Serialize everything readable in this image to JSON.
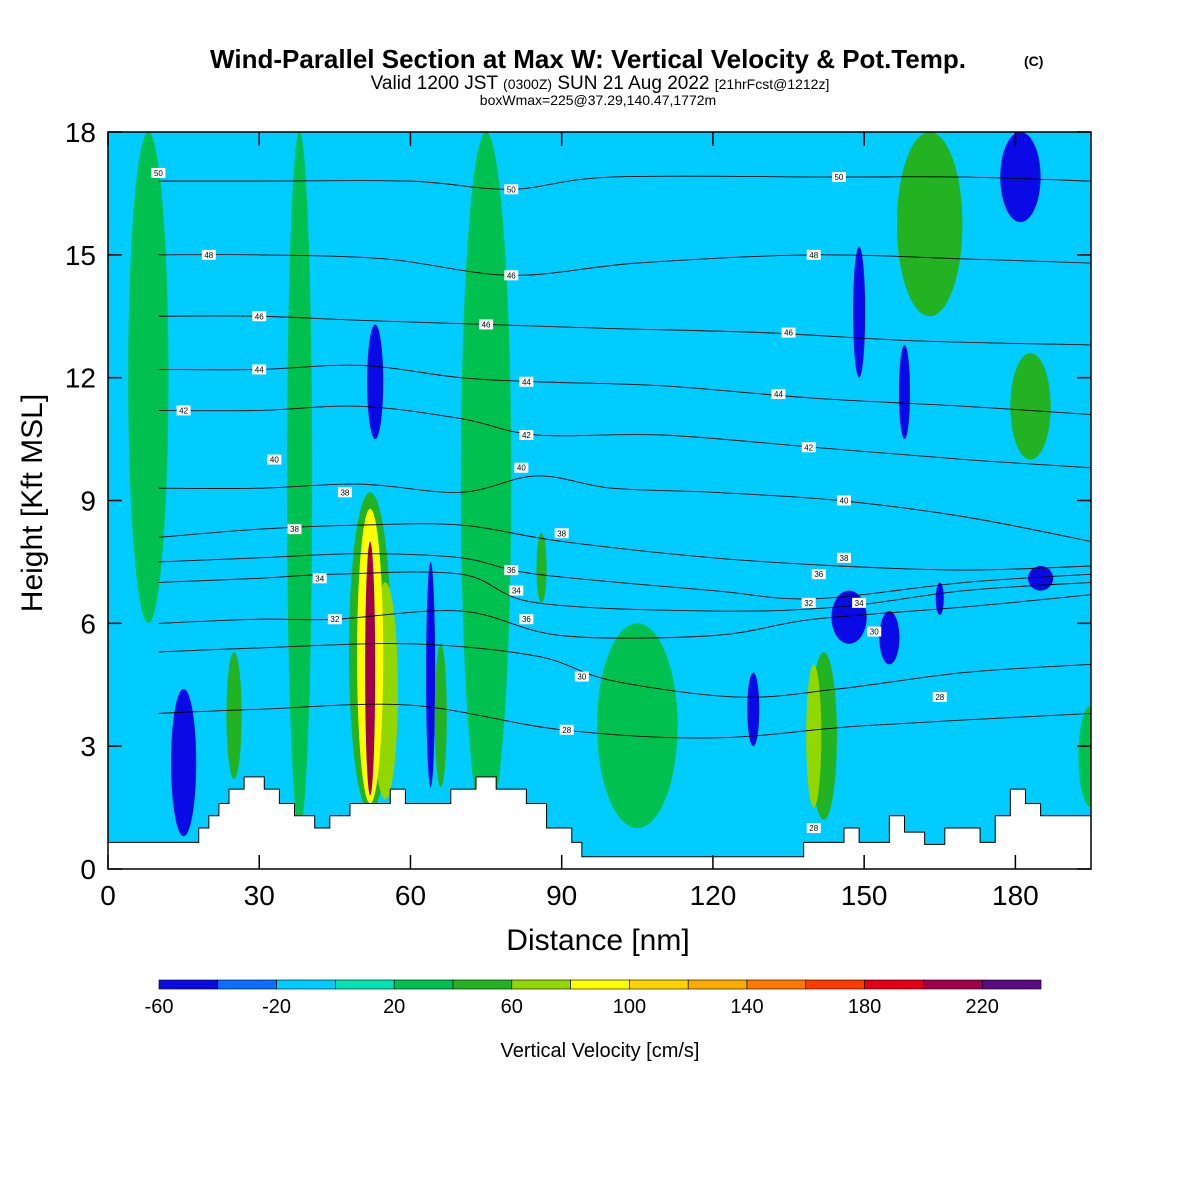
{
  "header": {
    "title": "Wind-Parallel Section at Max W: Vertical Velocity & Pot.Temp.",
    "title_mark": "(C)",
    "valid_prefix": "Valid 1200 JST",
    "valid_utc": "(0300Z)",
    "valid_date": "SUN 21 Aug 2022",
    "forecast": "[21hrFcst@1212z]",
    "box_info": "boxWmax=225@37.29,140.47,1772m"
  },
  "colors": {
    "background": "#00ccff",
    "terrain": "#ffffff",
    "isentrope": "#000000",
    "frame": "#000000"
  },
  "chart_data": {
    "type": "heatmap",
    "title": "Wind-Parallel Section at Max W: Vertical Velocity & Pot.Temp.",
    "xlabel": "Distance [nm]",
    "ylabel": "Height [Kft MSL]",
    "xlim": [
      0,
      195
    ],
    "ylim": [
      0,
      18
    ],
    "x_ticks": [
      0,
      30,
      60,
      90,
      120,
      150,
      180
    ],
    "y_ticks": [
      0,
      3,
      6,
      9,
      12,
      15,
      18
    ],
    "colorbar": {
      "label": "Vertical Velocity [cm/s]",
      "bins": [
        -60,
        -40,
        -20,
        0,
        20,
        40,
        60,
        80,
        100,
        120,
        140,
        160,
        180,
        200,
        220,
        240
      ],
      "tick_values": [
        -60,
        -20,
        20,
        60,
        100,
        140,
        180,
        220
      ],
      "colors": [
        "#0a0ae6",
        "#0a6eff",
        "#00ccff",
        "#00e4b4",
        "#00c050",
        "#22b222",
        "#92d800",
        "#ffff00",
        "#ffd200",
        "#ffaa00",
        "#ff7800",
        "#ff3c00",
        "#e60014",
        "#a0004a",
        "#5a0a82"
      ]
    },
    "velocity_features": [
      {
        "x": 52,
        "z0": 1.8,
        "z1": 8.0,
        "w": 210,
        "halfwidth_nm": 1.0
      },
      {
        "x": 52,
        "z0": 1.6,
        "z1": 8.8,
        "w": 90,
        "halfwidth_nm": 2.6
      },
      {
        "x": 55,
        "z0": 1.7,
        "z1": 7.0,
        "w": 70,
        "halfwidth_nm": 2.5
      },
      {
        "x": 52,
        "z0": 1.4,
        "z1": 9.2,
        "w": 45,
        "halfwidth_nm": 4.2
      },
      {
        "x": 15,
        "z0": 0.8,
        "z1": 4.4,
        "w": -45,
        "halfwidth_nm": 2.5
      },
      {
        "x": 53,
        "z0": 10.5,
        "z1": 13.3,
        "w": -45,
        "halfwidth_nm": 1.6
      },
      {
        "x": 64,
        "z0": 2.0,
        "z1": 7.5,
        "w": -45,
        "halfwidth_nm": 0.9
      },
      {
        "x": 66,
        "z0": 2.0,
        "z1": 5.5,
        "w": 45,
        "halfwidth_nm": 1.2
      },
      {
        "x": 25,
        "z0": 2.2,
        "z1": 5.3,
        "w": 45,
        "halfwidth_nm": 1.5
      },
      {
        "x": 86,
        "z0": 6.5,
        "z1": 8.2,
        "w": 45,
        "halfwidth_nm": 1.0
      },
      {
        "x": 128,
        "z0": 3.0,
        "z1": 4.8,
        "w": -45,
        "halfwidth_nm": 1.2
      },
      {
        "x": 140,
        "z0": 1.5,
        "z1": 5.0,
        "w": 70,
        "halfwidth_nm": 1.5
      },
      {
        "x": 142,
        "z0": 1.2,
        "z1": 5.3,
        "w": 45,
        "halfwidth_nm": 2.6
      },
      {
        "x": 147,
        "z0": 5.5,
        "z1": 6.8,
        "w": -45,
        "halfwidth_nm": 3.5
      },
      {
        "x": 155,
        "z0": 5.0,
        "z1": 6.3,
        "w": -45,
        "halfwidth_nm": 2.0
      },
      {
        "x": 149,
        "z0": 12.0,
        "z1": 15.2,
        "w": -45,
        "halfwidth_nm": 1.2
      },
      {
        "x": 158,
        "z0": 10.5,
        "z1": 12.8,
        "w": -45,
        "halfwidth_nm": 1.1
      },
      {
        "x": 181,
        "z0": 15.8,
        "z1": 18.0,
        "w": -45,
        "halfwidth_nm": 4.0
      },
      {
        "x": 163,
        "z0": 13.5,
        "z1": 18.0,
        "w": 45,
        "halfwidth_nm": 6.5
      },
      {
        "x": 183,
        "z0": 10.0,
        "z1": 12.6,
        "w": 45,
        "halfwidth_nm": 4.0
      },
      {
        "x": 185,
        "z0": 6.8,
        "z1": 7.4,
        "w": -45,
        "halfwidth_nm": 2.5
      },
      {
        "x": 165,
        "z0": 6.2,
        "z1": 7.0,
        "w": -45,
        "halfwidth_nm": 0.8
      },
      {
        "x": 75,
        "z0": 1.0,
        "z1": 18.0,
        "w": 30,
        "halfwidth_nm": 5.0
      },
      {
        "x": 8,
        "z0": 6.0,
        "z1": 18.0,
        "w": 25,
        "halfwidth_nm": 4.0
      },
      {
        "x": 105,
        "z0": 1.0,
        "z1": 6.0,
        "w": 25,
        "halfwidth_nm": 8.0
      },
      {
        "x": 38,
        "z0": 1.0,
        "z1": 18.0,
        "w": 25,
        "halfwidth_nm": 2.5
      },
      {
        "x": 195,
        "z0": 1.5,
        "z1": 4.0,
        "w": 25,
        "halfwidth_nm": 2.5
      }
    ],
    "terrain_kft": [
      [
        0,
        0.65
      ],
      [
        17,
        0.65
      ],
      [
        18,
        1.0
      ],
      [
        20,
        1.3
      ],
      [
        22,
        1.6
      ],
      [
        24,
        1.95
      ],
      [
        27,
        2.25
      ],
      [
        31,
        1.95
      ],
      [
        34,
        1.6
      ],
      [
        37,
        1.3
      ],
      [
        41,
        1.0
      ],
      [
        44,
        1.3
      ],
      [
        48,
        1.6
      ],
      [
        52,
        1.6
      ],
      [
        56,
        1.95
      ],
      [
        59,
        1.6
      ],
      [
        63,
        1.6
      ],
      [
        68,
        1.95
      ],
      [
        73,
        2.25
      ],
      [
        77,
        1.95
      ],
      [
        83,
        1.6
      ],
      [
        87,
        1.0
      ],
      [
        92,
        0.65
      ],
      [
        94,
        0.3
      ],
      [
        128,
        0.3
      ],
      [
        138,
        0.65
      ],
      [
        145,
        0.65
      ],
      [
        146,
        1.0
      ],
      [
        149,
        0.65
      ],
      [
        155,
        1.3
      ],
      [
        158,
        0.9
      ],
      [
        162,
        0.6
      ],
      [
        166,
        1.0
      ],
      [
        173,
        0.65
      ],
      [
        176,
        1.3
      ],
      [
        179,
        1.95
      ],
      [
        182,
        1.6
      ],
      [
        185,
        1.3
      ],
      [
        188,
        1.3
      ],
      [
        195,
        1.3
      ]
    ],
    "isentropes": [
      {
        "level": 328,
        "pts": [
          [
            10,
            3.8
          ],
          [
            30,
            3.9
          ],
          [
            60,
            4.0
          ],
          [
            90,
            3.4
          ],
          [
            120,
            3.2
          ],
          [
            150,
            3.5
          ],
          [
            195,
            3.8
          ]
        ]
      },
      {
        "level": 330,
        "pts": [
          [
            10,
            5.3
          ],
          [
            30,
            5.4
          ],
          [
            60,
            5.5
          ],
          [
            85,
            5.2
          ],
          [
            100,
            4.6
          ],
          [
            125,
            4.2
          ],
          [
            145,
            4.4
          ],
          [
            170,
            4.8
          ],
          [
            195,
            5.0
          ]
        ]
      },
      {
        "level": 332,
        "pts": [
          [
            10,
            6.0
          ],
          [
            30,
            6.1
          ],
          [
            45,
            6.1
          ],
          [
            70,
            6.3
          ],
          [
            90,
            5.7
          ],
          [
            120,
            5.7
          ],
          [
            140,
            6.1
          ],
          [
            170,
            6.4
          ],
          [
            195,
            6.7
          ]
        ]
      },
      {
        "level": 334,
        "pts": [
          [
            10,
            7.0
          ],
          [
            30,
            7.1
          ],
          [
            45,
            7.2
          ],
          [
            70,
            7.2
          ],
          [
            85,
            6.5
          ],
          [
            120,
            6.3
          ],
          [
            145,
            6.4
          ],
          [
            170,
            6.8
          ],
          [
            195,
            7.0
          ]
        ]
      },
      {
        "level": 336,
        "pts": [
          [
            10,
            7.5
          ],
          [
            30,
            7.6
          ],
          [
            50,
            7.7
          ],
          [
            70,
            7.6
          ],
          [
            85,
            7.2
          ],
          [
            120,
            6.8
          ],
          [
            140,
            6.6
          ],
          [
            170,
            7.0
          ],
          [
            195,
            7.2
          ]
        ]
      },
      {
        "level": 338,
        "pts": [
          [
            10,
            8.1
          ],
          [
            30,
            8.3
          ],
          [
            50,
            8.4
          ],
          [
            70,
            8.4
          ],
          [
            90,
            8.0
          ],
          [
            120,
            7.6
          ],
          [
            145,
            7.4
          ],
          [
            170,
            7.3
          ],
          [
            195,
            7.4
          ]
        ]
      },
      {
        "level": 340,
        "pts": [
          [
            10,
            9.3
          ],
          [
            30,
            9.3
          ],
          [
            50,
            9.4
          ],
          [
            70,
            9.2
          ],
          [
            85,
            9.6
          ],
          [
            100,
            9.3
          ],
          [
            120,
            9.2
          ],
          [
            145,
            9.0
          ],
          [
            170,
            8.6
          ],
          [
            195,
            8.0
          ]
        ]
      },
      {
        "level": 342,
        "pts": [
          [
            10,
            11.2
          ],
          [
            30,
            11.2
          ],
          [
            50,
            11.3
          ],
          [
            70,
            11.0
          ],
          [
            85,
            10.6
          ],
          [
            110,
            10.6
          ],
          [
            140,
            10.3
          ],
          [
            170,
            10.0
          ],
          [
            195,
            9.8
          ]
        ]
      },
      {
        "level": 344,
        "pts": [
          [
            10,
            12.2
          ],
          [
            30,
            12.2
          ],
          [
            50,
            12.3
          ],
          [
            70,
            12.0
          ],
          [
            85,
            11.9
          ],
          [
            110,
            11.8
          ],
          [
            140,
            11.5
          ],
          [
            170,
            11.3
          ],
          [
            195,
            11.1
          ]
        ]
      },
      {
        "level": 346,
        "pts": [
          [
            10,
            13.5
          ],
          [
            30,
            13.5
          ],
          [
            50,
            13.4
          ],
          [
            75,
            13.3
          ],
          [
            100,
            13.2
          ],
          [
            130,
            13.1
          ],
          [
            160,
            12.9
          ],
          [
            195,
            12.8
          ]
        ]
      },
      {
        "level": 348,
        "pts": [
          [
            10,
            15.0
          ],
          [
            30,
            15.0
          ],
          [
            55,
            14.9
          ],
          [
            80,
            14.5
          ],
          [
            105,
            14.8
          ],
          [
            140,
            15.0
          ],
          [
            170,
            14.9
          ],
          [
            195,
            14.8
          ]
        ]
      },
      {
        "level": 350,
        "pts": [
          [
            10,
            16.8
          ],
          [
            30,
            16.8
          ],
          [
            60,
            16.8
          ],
          [
            80,
            16.6
          ],
          [
            100,
            16.9
          ],
          [
            145,
            16.9
          ],
          [
            170,
            16.9
          ],
          [
            195,
            16.8
          ]
        ]
      }
    ],
    "isentrope_label_values": [
      "50",
      "48",
      "46",
      "44",
      "42",
      "40",
      "38",
      "36",
      "34",
      "32",
      "30",
      "28"
    ]
  },
  "labels": {
    "contour_50": "50",
    "contour_48": "48",
    "contour_46": "46",
    "contour_44": "44",
    "contour_42": "42",
    "contour_40": "40",
    "contour_38": "38",
    "contour_36": "36",
    "contour_34": "34",
    "contour_32": "32",
    "contour_30": "30",
    "contour_28": "28"
  }
}
